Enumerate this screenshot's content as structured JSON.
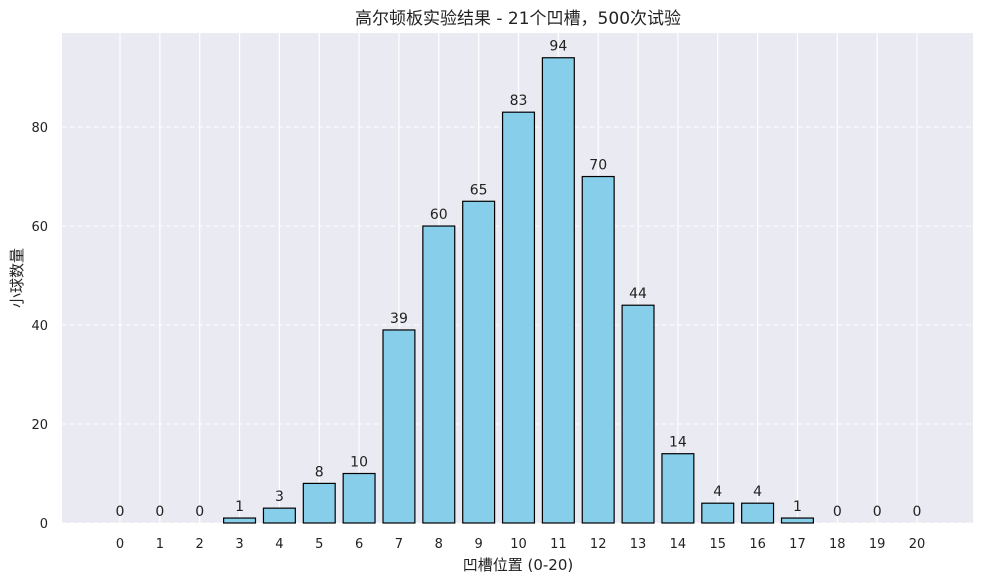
{
  "chart_data": {
    "type": "bar",
    "title": "高尔顿板实验结果 - 21个凹槽，500次试验",
    "xlabel": "凹槽位置 (0-20)",
    "ylabel": "小球数量",
    "categories": [
      "0",
      "1",
      "2",
      "3",
      "4",
      "5",
      "6",
      "7",
      "8",
      "9",
      "10",
      "11",
      "12",
      "13",
      "14",
      "15",
      "16",
      "17",
      "18",
      "19",
      "20"
    ],
    "values": [
      0,
      0,
      0,
      1,
      3,
      8,
      10,
      39,
      60,
      65,
      83,
      94,
      70,
      44,
      14,
      4,
      4,
      1,
      0,
      0,
      0
    ],
    "y_ticks": [
      0,
      20,
      40,
      60,
      80
    ],
    "ylim": [
      0,
      99
    ],
    "grid": true,
    "legend": "none",
    "colors": {
      "bar_fill": "#87ceeb",
      "bar_edge": "#000000",
      "plot_background": "#eaeaf2",
      "grid": "#ffffff",
      "text": "#222222"
    }
  }
}
